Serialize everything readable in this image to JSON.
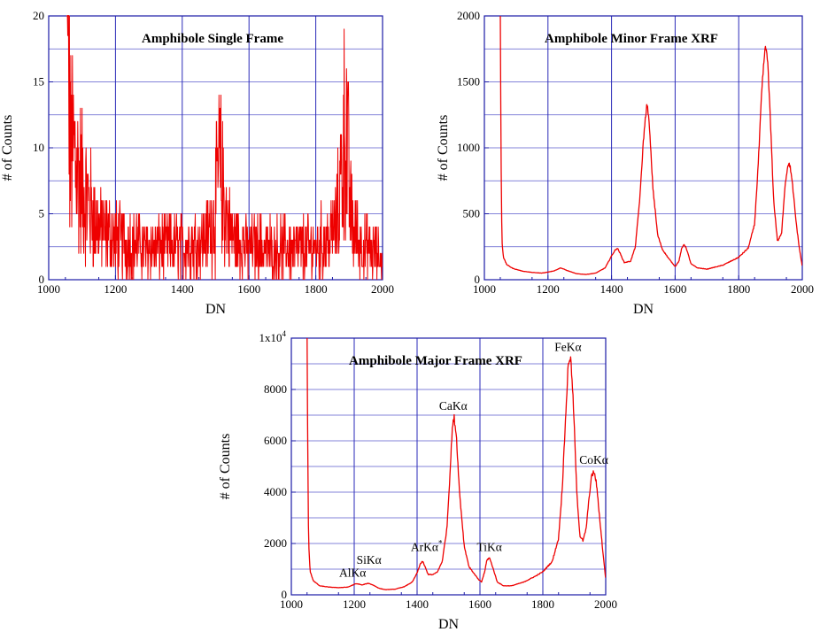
{
  "chart_data": [
    {
      "type": "line",
      "title": "Amphibole Single Frame",
      "xlabel": "DN",
      "ylabel": "# of Counts",
      "xlim": [
        1000,
        2000
      ],
      "ylim": [
        0,
        20
      ],
      "x_ticks": [
        1000,
        1200,
        1400,
        1600,
        1800,
        2000
      ],
      "x_tick_labels": [
        "1000",
        "1200",
        "1400",
        "1600",
        "1800",
        "2000"
      ],
      "y_ticks": [
        0,
        5,
        10,
        15,
        20
      ],
      "y_tick_labels": [
        "0",
        "5",
        "10",
        "15",
        "20"
      ],
      "grid": true,
      "color": "#ee0000",
      "series": [
        {
          "x": [
            1053,
            1056,
            1060,
            1065,
            1070,
            1080,
            1090,
            1100,
            1110,
            1120,
            1130,
            1150,
            1200,
            1300,
            1400,
            1450,
            1480,
            1495,
            1505,
            1510,
            1515,
            1520,
            1530,
            1550,
            1600,
            1700,
            1800,
            1840,
            1860,
            1870,
            1878,
            1883,
            1888,
            1892,
            1898,
            1905,
            1915,
            1930,
            1950,
            1975,
            2000
          ],
          "y": [
            20,
            20,
            14,
            10,
            10,
            9,
            8,
            7,
            6.5,
            6,
            5,
            4,
            3,
            2.5,
            2.5,
            2.8,
            3.5,
            5,
            7,
            8.5,
            8,
            7,
            5,
            3.2,
            2.5,
            2.3,
            2.5,
            3,
            4,
            6,
            8.5,
            10.5,
            12,
            11,
            8,
            5,
            3.5,
            3,
            2.5,
            2,
            1.5
          ]
        }
      ]
    },
    {
      "type": "line",
      "title": "Amphibole Minor Frame XRF",
      "xlabel": "DN",
      "ylabel": "# of Counts",
      "xlim": [
        1000,
        2000
      ],
      "ylim": [
        0,
        2000
      ],
      "x_ticks": [
        1000,
        1200,
        1400,
        1600,
        1800,
        2000
      ],
      "x_tick_labels": [
        "1000",
        "1200",
        "1400",
        "1600",
        "1800",
        "2000"
      ],
      "y_ticks": [
        0,
        500,
        1000,
        1500,
        2000
      ],
      "y_tick_labels": [
        "0",
        "500",
        "1000",
        "1500",
        "2000"
      ],
      "grid": true,
      "color": "#ee0000",
      "series": [
        {
          "x": [
            1050,
            1052,
            1055,
            1060,
            1070,
            1090,
            1120,
            1150,
            1180,
            1200,
            1220,
            1240,
            1260,
            1290,
            1320,
            1350,
            1380,
            1400,
            1410,
            1418,
            1425,
            1440,
            1460,
            1475,
            1490,
            1500,
            1510,
            1515,
            1520,
            1530,
            1545,
            1560,
            1580,
            1600,
            1612,
            1620,
            1628,
            1635,
            1650,
            1670,
            1700,
            1750,
            1800,
            1830,
            1850,
            1862,
            1872,
            1880,
            1885,
            1890,
            1898,
            1910,
            1922,
            1935,
            1945,
            1955,
            1962,
            1970,
            1980,
            1990,
            2000
          ],
          "y": [
            2000,
            1100,
            300,
            170,
            115,
            85,
            65,
            55,
            50,
            58,
            68,
            90,
            70,
            45,
            40,
            50,
            90,
            180,
            220,
            240,
            210,
            130,
            140,
            250,
            650,
            1050,
            1320,
            1280,
            1120,
            700,
            340,
            230,
            160,
            100,
            140,
            230,
            270,
            240,
            120,
            90,
            80,
            110,
            170,
            240,
            420,
            900,
            1400,
            1680,
            1760,
            1700,
            1300,
            600,
            290,
            350,
            700,
            880,
            860,
            700,
            450,
            250,
            100
          ]
        }
      ]
    },
    {
      "type": "line",
      "title": "Amphibole Major Frame XRF",
      "xlabel": "DN",
      "ylabel": "# of Counts",
      "xlim": [
        1000,
        2000
      ],
      "ylim": [
        0,
        10000
      ],
      "x_ticks": [
        1000,
        1200,
        1400,
        1600,
        1800,
        2000
      ],
      "x_tick_labels": [
        "1000",
        "1200",
        "1400",
        "1600",
        "1800",
        "2000"
      ],
      "y_ticks": [
        0,
        2000,
        4000,
        6000,
        8000
      ],
      "y_tick_labels": [
        "0",
        "2000",
        "4000",
        "6000",
        "8000"
      ],
      "y_top_label": "1x10",
      "y_top_label_exp": "4",
      "grid": true,
      "color": "#ee0000",
      "annotations": [
        {
          "text": "AlKα",
          "x": 1195,
          "y": 700
        },
        {
          "text": "SiKα",
          "x": 1247,
          "y": 1200
        },
        {
          "text": "ArKα",
          "x": 1430,
          "y": 1700,
          "superscript": "*"
        },
        {
          "text": "CaKα",
          "x": 1515,
          "y": 7200
        },
        {
          "text": "TiKα",
          "x": 1630,
          "y": 1700
        },
        {
          "text": "FeKα",
          "x": 1880,
          "y": 9500
        },
        {
          "text": "CoKα",
          "x": 1962,
          "y": 5100
        }
      ],
      "series": [
        {
          "x": [
            1050,
            1052,
            1055,
            1060,
            1070,
            1090,
            1120,
            1150,
            1180,
            1195,
            1205,
            1215,
            1225,
            1235,
            1245,
            1260,
            1280,
            1300,
            1330,
            1360,
            1385,
            1400,
            1410,
            1418,
            1425,
            1435,
            1450,
            1465,
            1480,
            1495,
            1505,
            1512,
            1518,
            1525,
            1535,
            1550,
            1565,
            1580,
            1595,
            1605,
            1615,
            1622,
            1630,
            1640,
            1655,
            1675,
            1700,
            1740,
            1780,
            1800,
            1830,
            1850,
            1862,
            1872,
            1880,
            1885,
            1890,
            1898,
            1908,
            1918,
            1928,
            1938,
            1948,
            1955,
            1962,
            1970,
            1980,
            1990,
            2000
          ],
          "y": [
            10000,
            6000,
            2000,
            900,
            550,
            350,
            300,
            280,
            300,
            380,
            430,
            420,
            380,
            420,
            450,
            380,
            250,
            200,
            220,
            320,
            500,
            850,
            1200,
            1300,
            1100,
            800,
            780,
            900,
            1300,
            2600,
            4800,
            6500,
            6900,
            6200,
            4000,
            1900,
            1100,
            850,
            600,
            500,
            900,
            1350,
            1450,
            1100,
            500,
            350,
            350,
            500,
            750,
            900,
            1300,
            2200,
            4200,
            6800,
            8800,
            9300,
            9000,
            7200,
            4000,
            2300,
            2100,
            2600,
            3900,
            4600,
            4800,
            4400,
            3100,
            1800,
            600
          ]
        }
      ]
    }
  ]
}
